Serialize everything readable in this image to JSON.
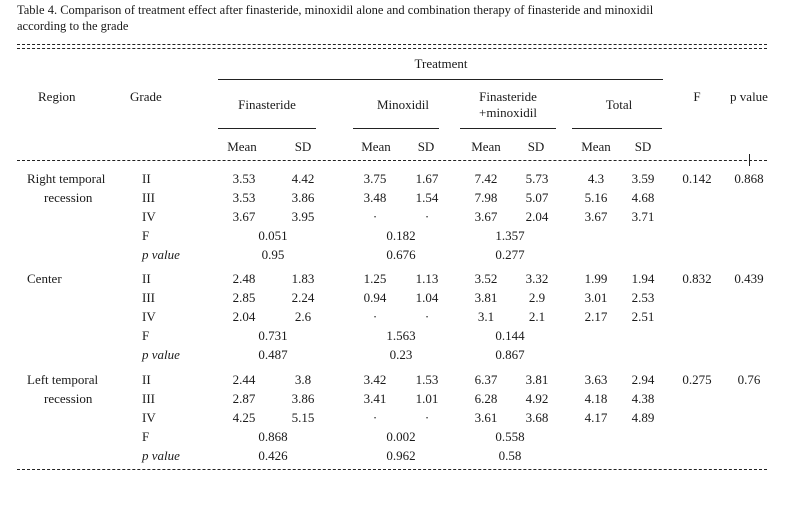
{
  "caption": {
    "line1": "Table 4. Comparison of treatment effect after finasteride, minoxidil alone and combination therapy of finasteride and minoxidil",
    "line2": "according to the grade"
  },
  "headers": {
    "region": "Region",
    "grade": "Grade",
    "treatment": "Treatment",
    "finasteride": "Finasteride",
    "minoxidil": "Minoxidil",
    "combo_line1": "Finasteride",
    "combo_line2": "+minoxidil",
    "total": "Total",
    "f": "F",
    "p_value": "p value",
    "mean": "Mean",
    "sd": "SD"
  },
  "groups": [
    {
      "region_line1": "Right temporal",
      "region_line2": "recession",
      "rows": [
        {
          "grade": "II",
          "fin_mean": "3.53",
          "fin_sd": "4.42",
          "min_mean": "3.75",
          "min_sd": "1.67",
          "combo_mean": "7.42",
          "combo_sd": "5.73",
          "total_mean": "4.3",
          "total_sd": "3.59"
        },
        {
          "grade": "III",
          "fin_mean": "3.53",
          "fin_sd": "3.86",
          "min_mean": "3.48",
          "min_sd": "1.54",
          "combo_mean": "7.98",
          "combo_sd": "5.07",
          "total_mean": "5.16",
          "total_sd": "4.68"
        },
        {
          "grade": "IV",
          "fin_mean": "3.67",
          "fin_sd": "3.95",
          "min_mean": "·",
          "min_sd": "·",
          "combo_mean": "3.67",
          "combo_sd": "2.04",
          "total_mean": "3.67",
          "total_sd": "3.71"
        }
      ],
      "f_label": "F",
      "f_fin": "0.051",
      "f_min": "0.182",
      "f_combo": "1.357",
      "p_label": "p value",
      "p_fin": "0.95",
      "p_min": "0.676",
      "p_combo": "0.277",
      "F": "0.142",
      "p": "0.868"
    },
    {
      "region_line1": "Center",
      "region_line2": "",
      "rows": [
        {
          "grade": "II",
          "fin_mean": "2.48",
          "fin_sd": "1.83",
          "min_mean": "1.25",
          "min_sd": "1.13",
          "combo_mean": "3.52",
          "combo_sd": "3.32",
          "total_mean": "1.99",
          "total_sd": "1.94"
        },
        {
          "grade": "III",
          "fin_mean": "2.85",
          "fin_sd": "2.24",
          "min_mean": "0.94",
          "min_sd": "1.04",
          "combo_mean": "3.81",
          "combo_sd": "2.9",
          "total_mean": "3.01",
          "total_sd": "2.53"
        },
        {
          "grade": "IV",
          "fin_mean": "2.04",
          "fin_sd": "2.6",
          "min_mean": "·",
          "min_sd": "·",
          "combo_mean": "3.1",
          "combo_sd": "2.1",
          "total_mean": "2.17",
          "total_sd": "2.51"
        }
      ],
      "f_label": "F",
      "f_fin": "0.731",
      "f_min": "1.563",
      "f_combo": "0.144",
      "p_label": "p value",
      "p_fin": "0.487",
      "p_min": "0.23",
      "p_combo": "0.867",
      "F": "0.832",
      "p": "0.439"
    },
    {
      "region_line1": "Left temporal",
      "region_line2": "recession",
      "rows": [
        {
          "grade": "II",
          "fin_mean": "2.44",
          "fin_sd": "3.8",
          "min_mean": "3.42",
          "min_sd": "1.53",
          "combo_mean": "6.37",
          "combo_sd": "3.81",
          "total_mean": "3.63",
          "total_sd": "2.94"
        },
        {
          "grade": "III",
          "fin_mean": "2.87",
          "fin_sd": "3.86",
          "min_mean": "3.41",
          "min_sd": "1.01",
          "combo_mean": "6.28",
          "combo_sd": "4.92",
          "total_mean": "4.18",
          "total_sd": "4.38"
        },
        {
          "grade": "IV",
          "fin_mean": "4.25",
          "fin_sd": "5.15",
          "min_mean": "·",
          "min_sd": "·",
          "combo_mean": "3.61",
          "combo_sd": "3.68",
          "total_mean": "4.17",
          "total_sd": "4.89"
        }
      ],
      "f_label": "F",
      "f_fin": "0.868",
      "f_min": "0.002",
      "f_combo": "0.558",
      "p_label": "p value",
      "p_fin": "0.426",
      "p_min": "0.962",
      "p_combo": "0.58",
      "F": "0.275",
      "p": "0.76"
    }
  ]
}
